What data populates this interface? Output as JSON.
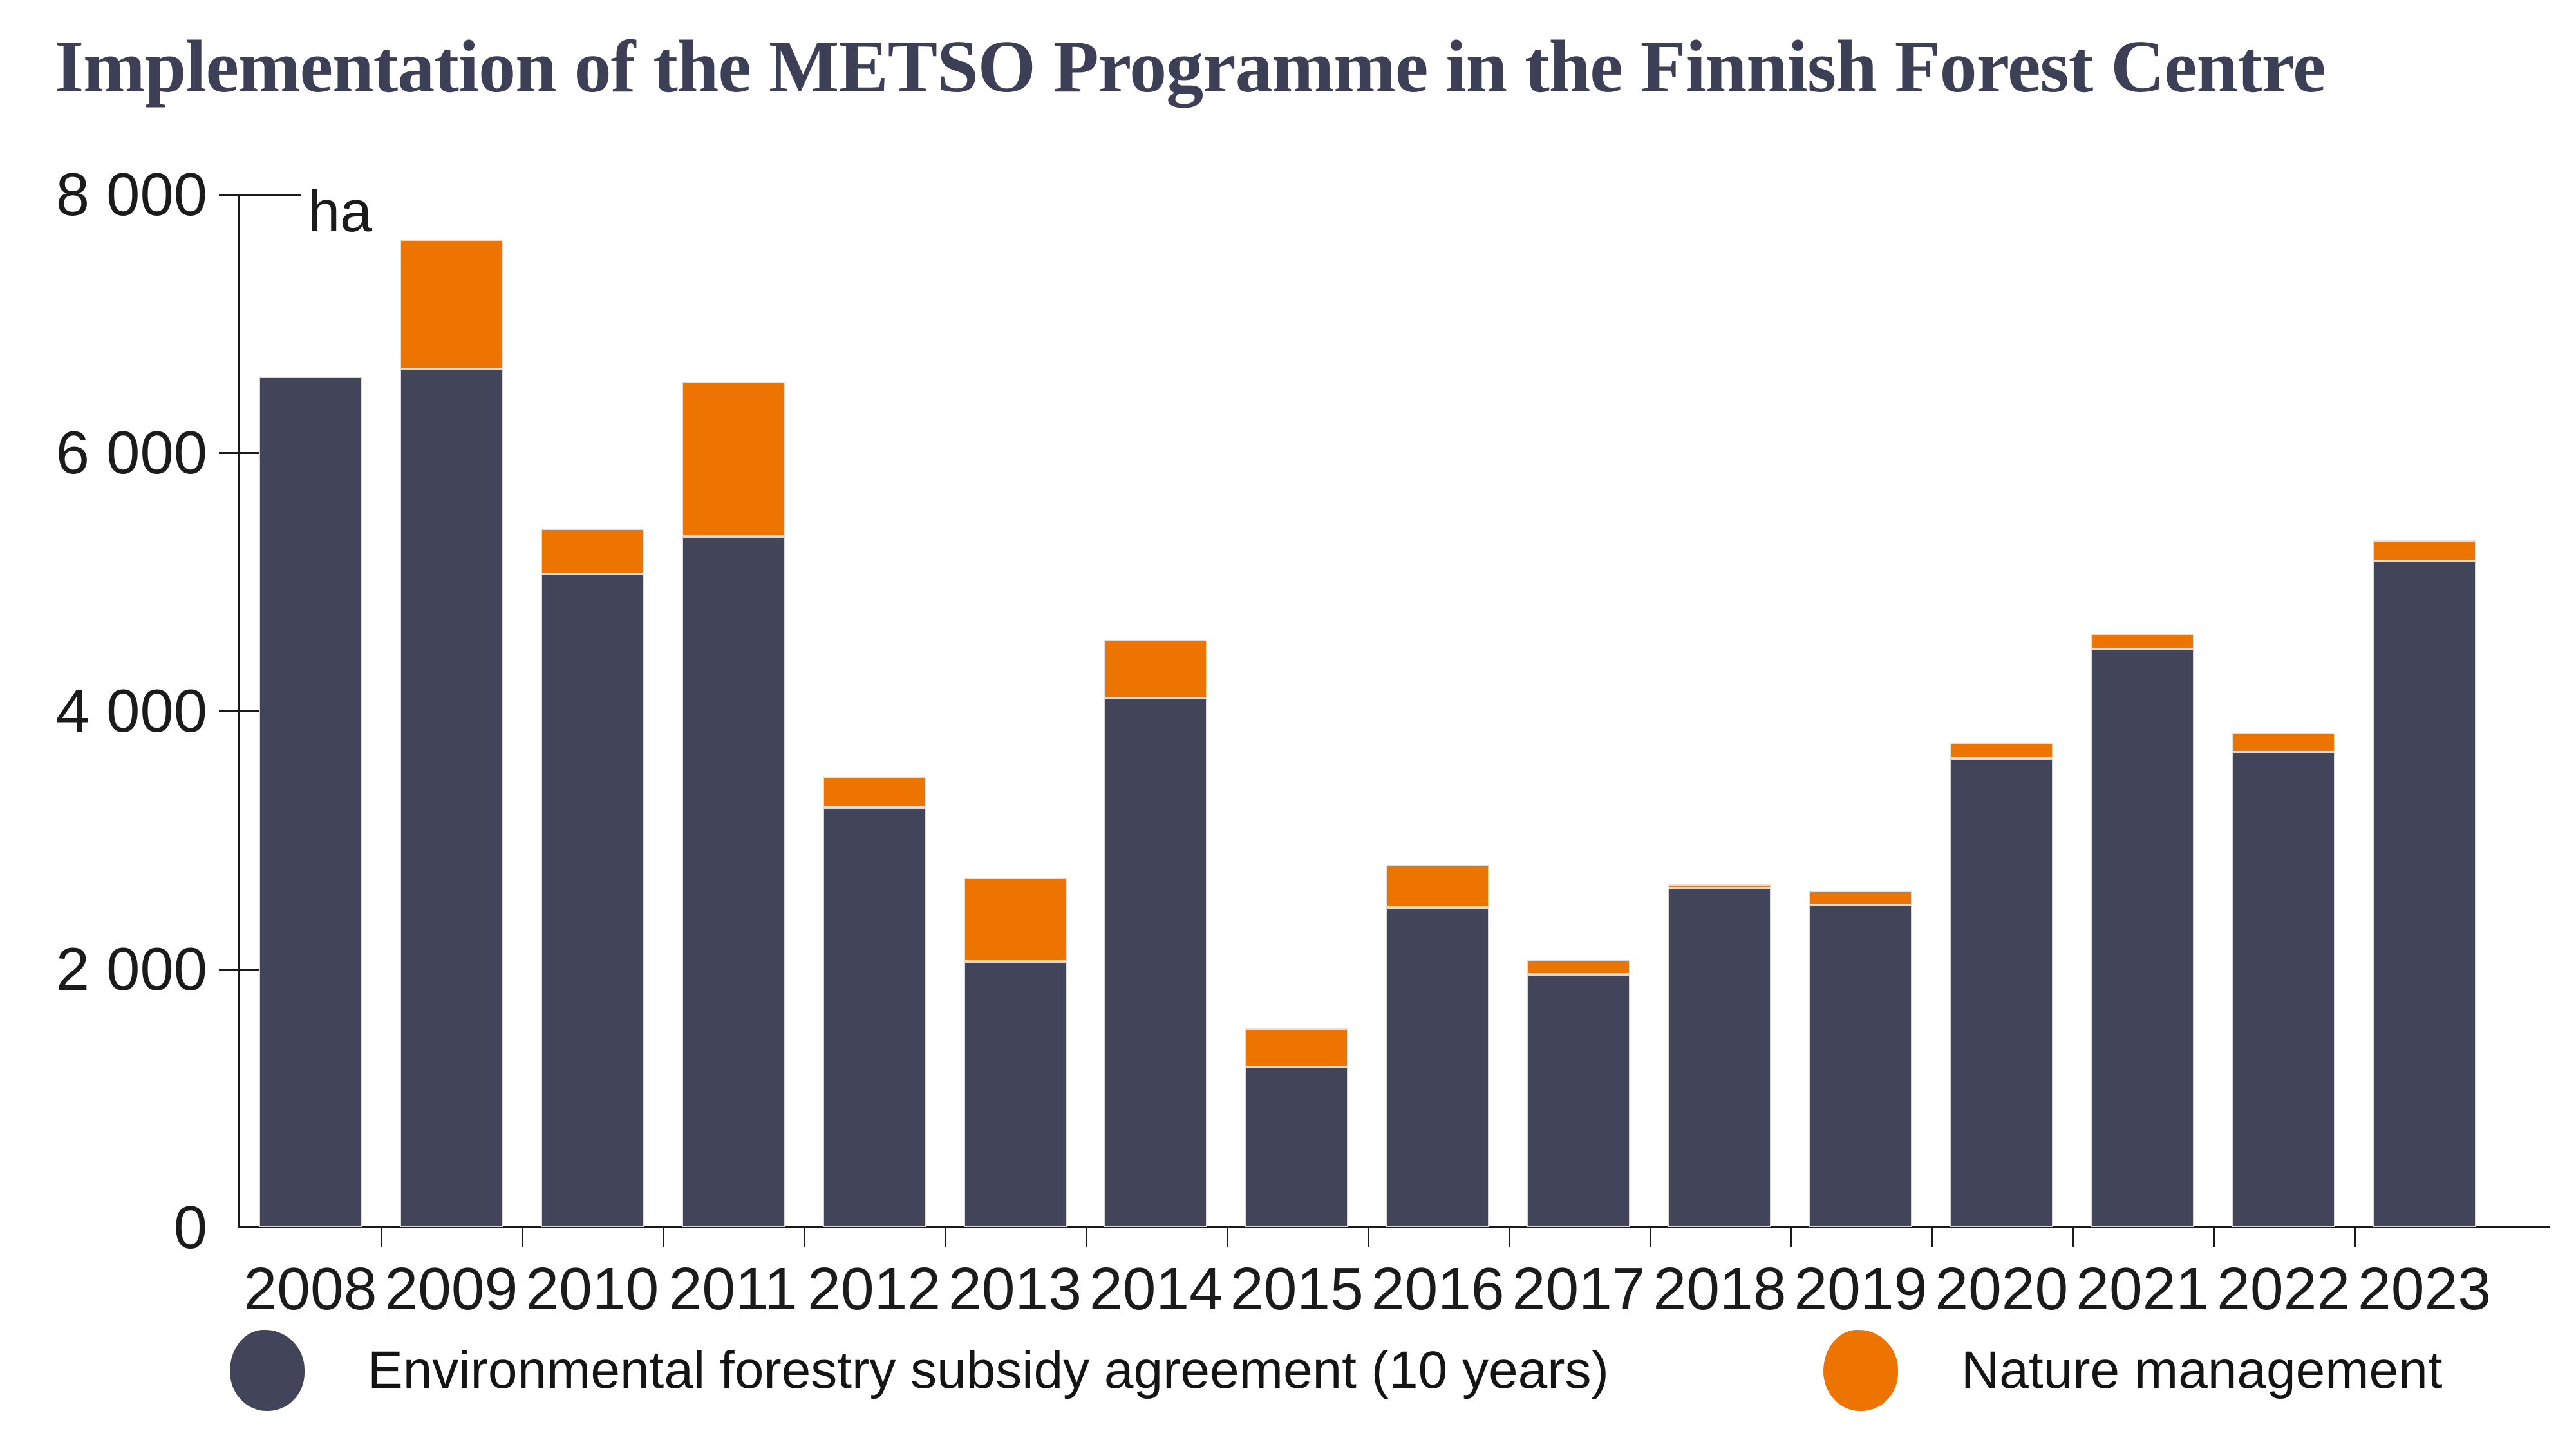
{
  "title": "Implementation of the METSO Programme in the Finnish Forest Centre",
  "axis": {
    "unit_label": "ha",
    "y_ticks": [
      {
        "label": "0",
        "value": 0
      },
      {
        "label": "2 000",
        "value": 2000
      },
      {
        "label": "4 000",
        "value": 4000
      },
      {
        "label": "6 000",
        "value": 6000
      },
      {
        "label": "8 000",
        "value": 8000
      }
    ]
  },
  "colors": {
    "subsidy": "#424459",
    "nature": "#ee7402",
    "title_text": "#3c3f55",
    "axis_line": "#1a1a1a",
    "label_text": "#1b1b1b"
  },
  "legend": [
    {
      "label": "Environmental forestry subsidy agreement (10 years)",
      "color": "#424459"
    },
    {
      "label": "Nature management",
      "color": "#ee7402"
    }
  ],
  "chart_data": {
    "type": "bar",
    "stacked": true,
    "title": "Implementation of the METSO Programme in the Finnish Forest Centre",
    "xlabel": "",
    "ylabel": "ha",
    "ylim": [
      0,
      8000
    ],
    "grid": false,
    "legend_position": "bottom",
    "categories": [
      "2008",
      "2009",
      "2010",
      "2011",
      "2012",
      "2013",
      "2014",
      "2015",
      "2016",
      "2017",
      "2018",
      "2019",
      "2020",
      "2021",
      "2022",
      "2023"
    ],
    "series": [
      {
        "name": "Environmental forestry subsidy agreement (10 years)",
        "color": "#424459",
        "values": [
          6590,
          6650,
          5060,
          5350,
          3250,
          2060,
          4100,
          1240,
          2480,
          1960,
          2630,
          2500,
          3630,
          4480,
          3680,
          5160
        ]
      },
      {
        "name": "Nature management",
        "color": "#ee7402",
        "values": [
          0,
          1000,
          350,
          1200,
          240,
          650,
          450,
          300,
          330,
          110,
          30,
          110,
          120,
          120,
          150,
          160
        ]
      }
    ]
  }
}
